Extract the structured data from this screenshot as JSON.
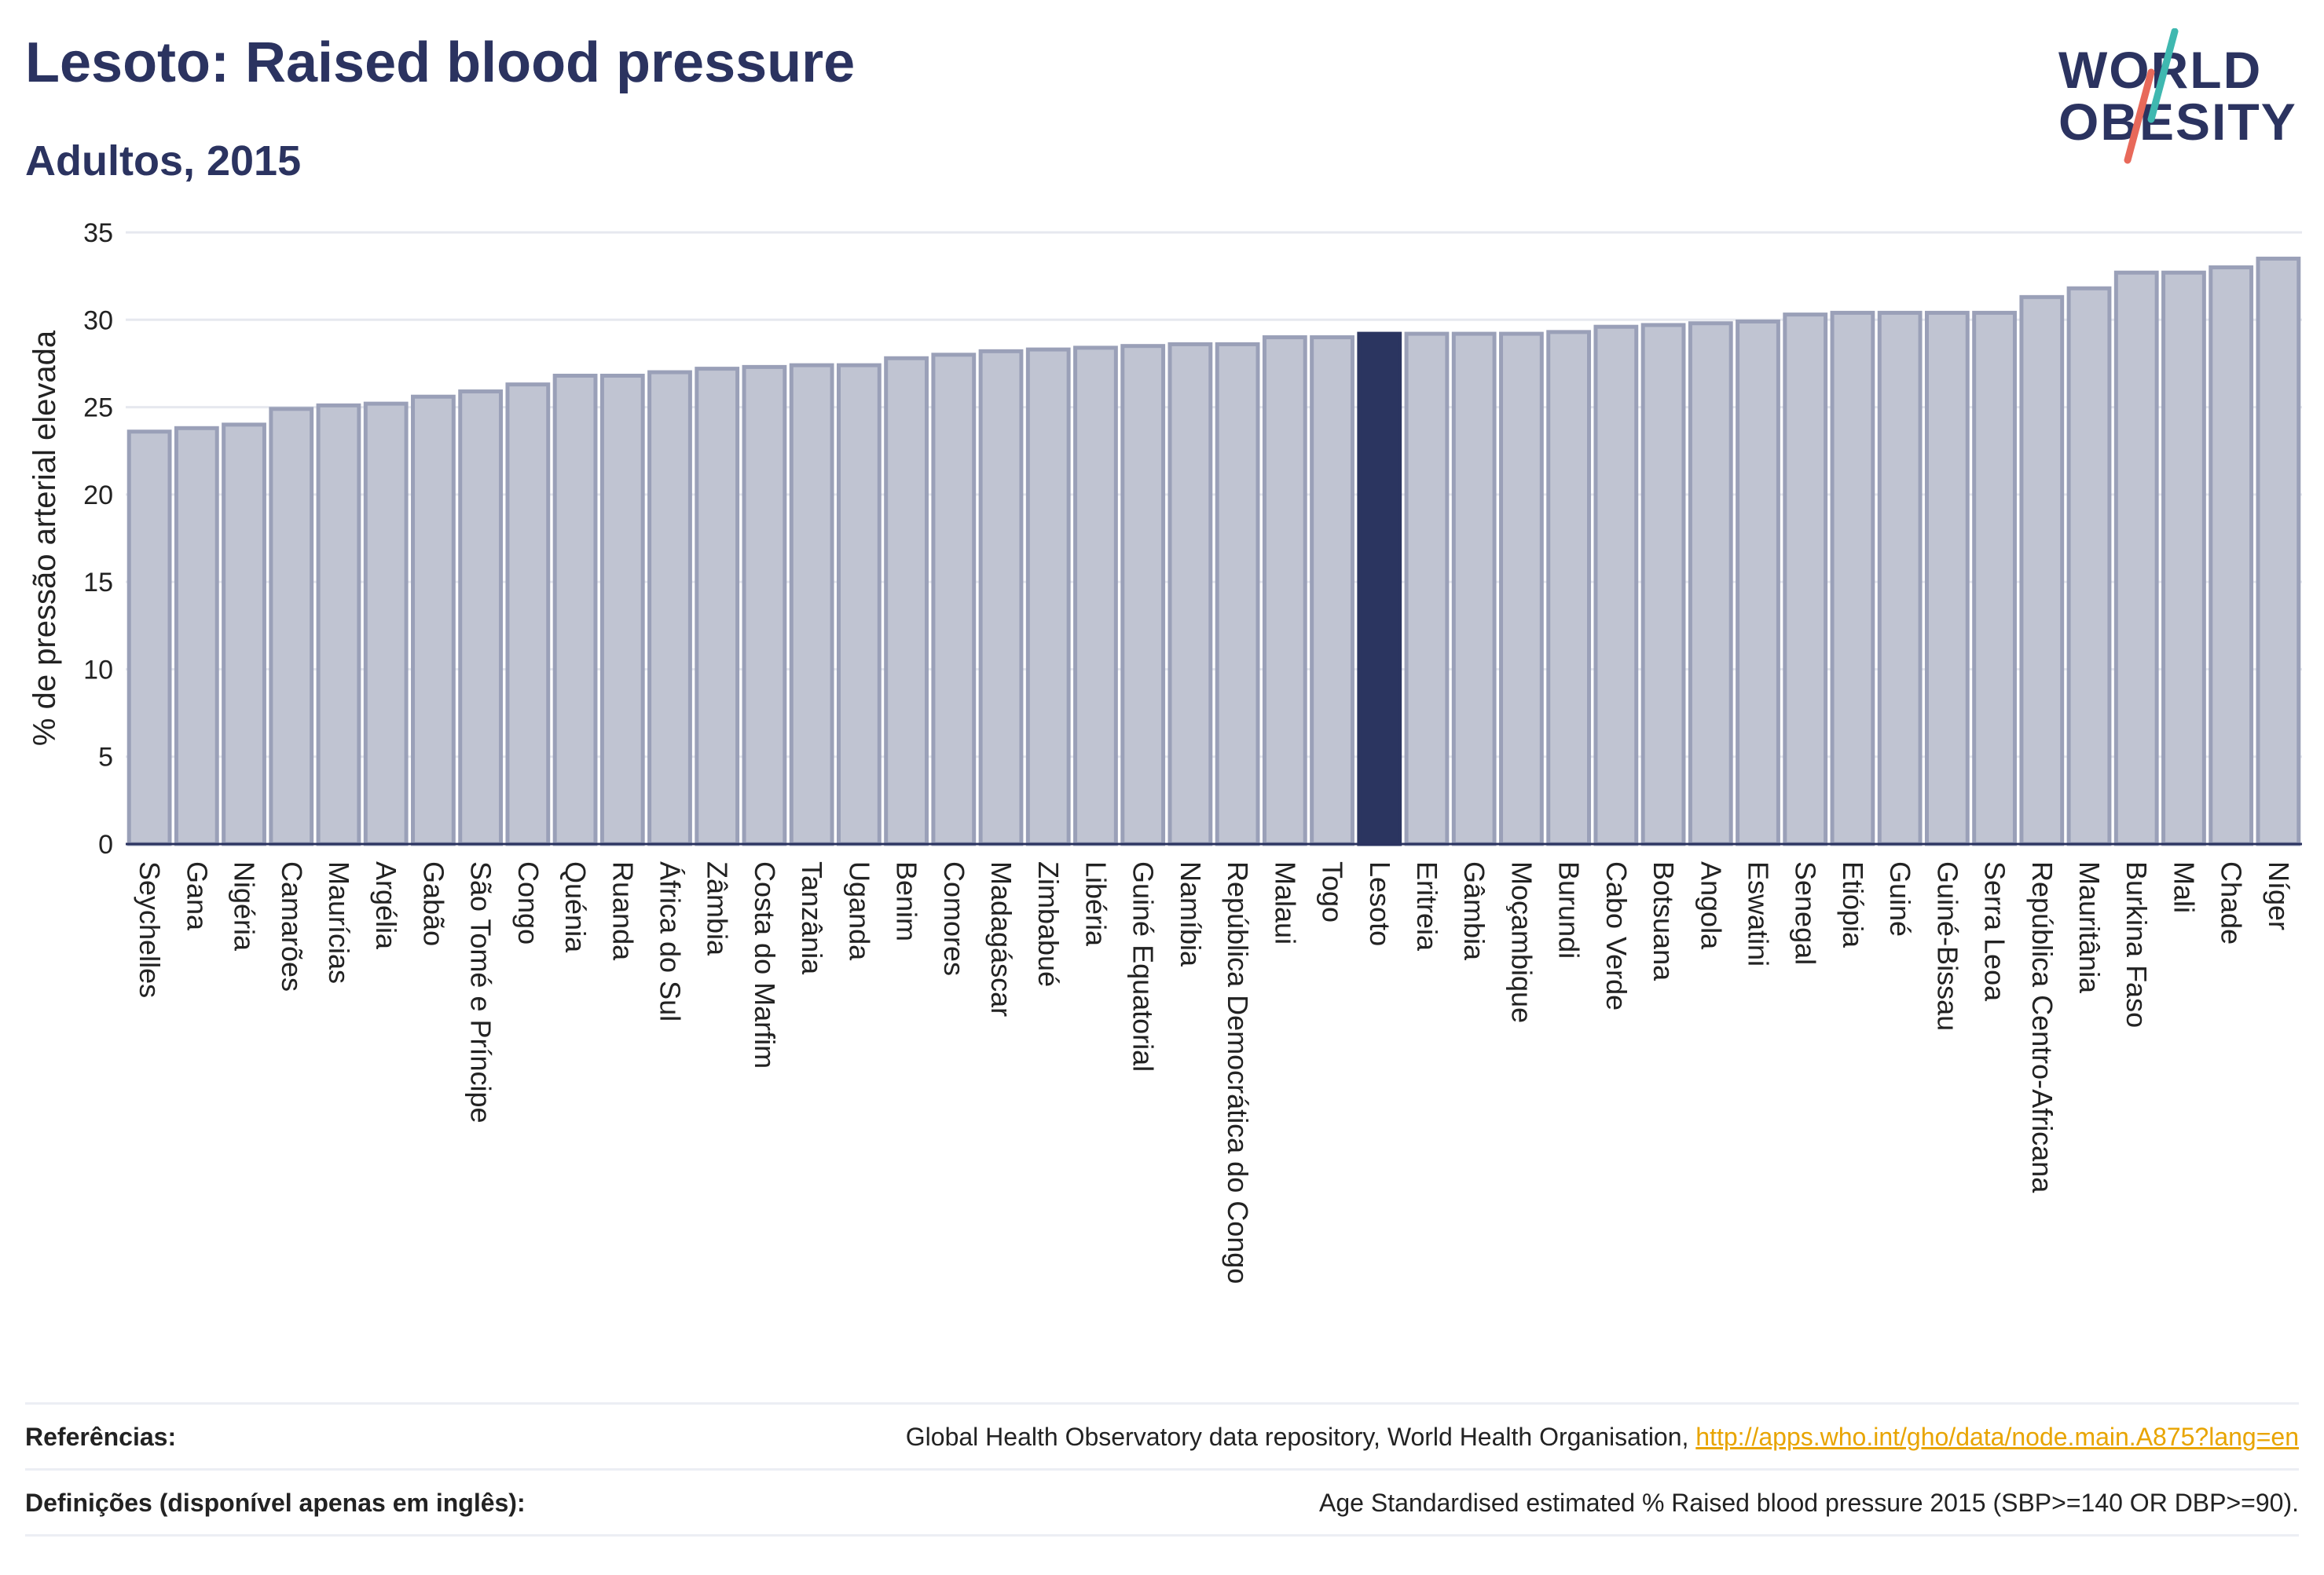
{
  "header": {
    "title": "Lesoto: Raised blood pressure",
    "subtitle": "Adultos, 2015"
  },
  "logo": {
    "line1": "WORLD",
    "line2": "OBESITY",
    "colors": {
      "text": "#2b3360",
      "slash_top": "#3fb8b0",
      "slash_bottom": "#e8695a"
    }
  },
  "colors": {
    "bar_fill": "#c0c4d2",
    "bar_stroke": "#9aa0b8",
    "highlight": "#2b3560",
    "grid": "#e6e8ef",
    "axis": "#2b3360"
  },
  "chart_data": {
    "type": "bar",
    "ylabel": "% de pressão arterial elevada",
    "ylim": [
      0,
      35
    ],
    "yticks": [
      0,
      5,
      10,
      15,
      20,
      25,
      30,
      35
    ],
    "grid": true,
    "highlight": "Lesoto",
    "categories": [
      "Seychelles",
      "Gana",
      "Nigéria",
      "Camarões",
      "Maurícias",
      "Argélia",
      "Gabão",
      "São Tomé e Príncipe",
      "Congo",
      "Quénia",
      "Ruanda",
      "África do Sul",
      "Zâmbia",
      "Costa do Marfim",
      "Tanzânia",
      "Uganda",
      "Benim",
      "Comores",
      "Madagáscar",
      "Zimbabué",
      "Libéria",
      "Guiné Equatorial",
      "Namíbia",
      "República Democrática do Congo",
      "Malaui",
      "Togo",
      "Lesoto",
      "Eritreia",
      "Gâmbia",
      "Moçambique",
      "Burundi",
      "Cabo Verde",
      "Botsuana",
      "Angola",
      "Eswatini",
      "Senegal",
      "Etiópia",
      "Guiné",
      "Guiné-Bissau",
      "Serra Leoa",
      "República Centro-Africana",
      "Mauritânia",
      "Burkina Faso",
      "Mali",
      "Chade",
      "Níger"
    ],
    "values": [
      23.6,
      23.8,
      24.0,
      24.9,
      25.1,
      25.2,
      25.6,
      25.9,
      26.3,
      26.8,
      26.8,
      27.0,
      27.2,
      27.3,
      27.4,
      27.4,
      27.8,
      28.0,
      28.2,
      28.3,
      28.4,
      28.5,
      28.6,
      28.6,
      29.0,
      29.0,
      29.2,
      29.2,
      29.2,
      29.2,
      29.3,
      29.6,
      29.7,
      29.8,
      29.9,
      30.3,
      30.4,
      30.4,
      30.4,
      30.4,
      31.3,
      31.8,
      32.7,
      32.7,
      33.0,
      33.5
    ]
  },
  "footer": {
    "references_label": "Referências:",
    "references_text": "Global Health Observatory data repository, World Health Organisation, ",
    "references_link": "http://apps.who.int/gho/data/node.main.A875?lang=en",
    "definitions_label": "Definições (disponível apenas em inglês):",
    "definitions_text": "Age Standardised estimated % Raised blood pressure 2015 (SBP>=140 OR DBP>=90)."
  }
}
